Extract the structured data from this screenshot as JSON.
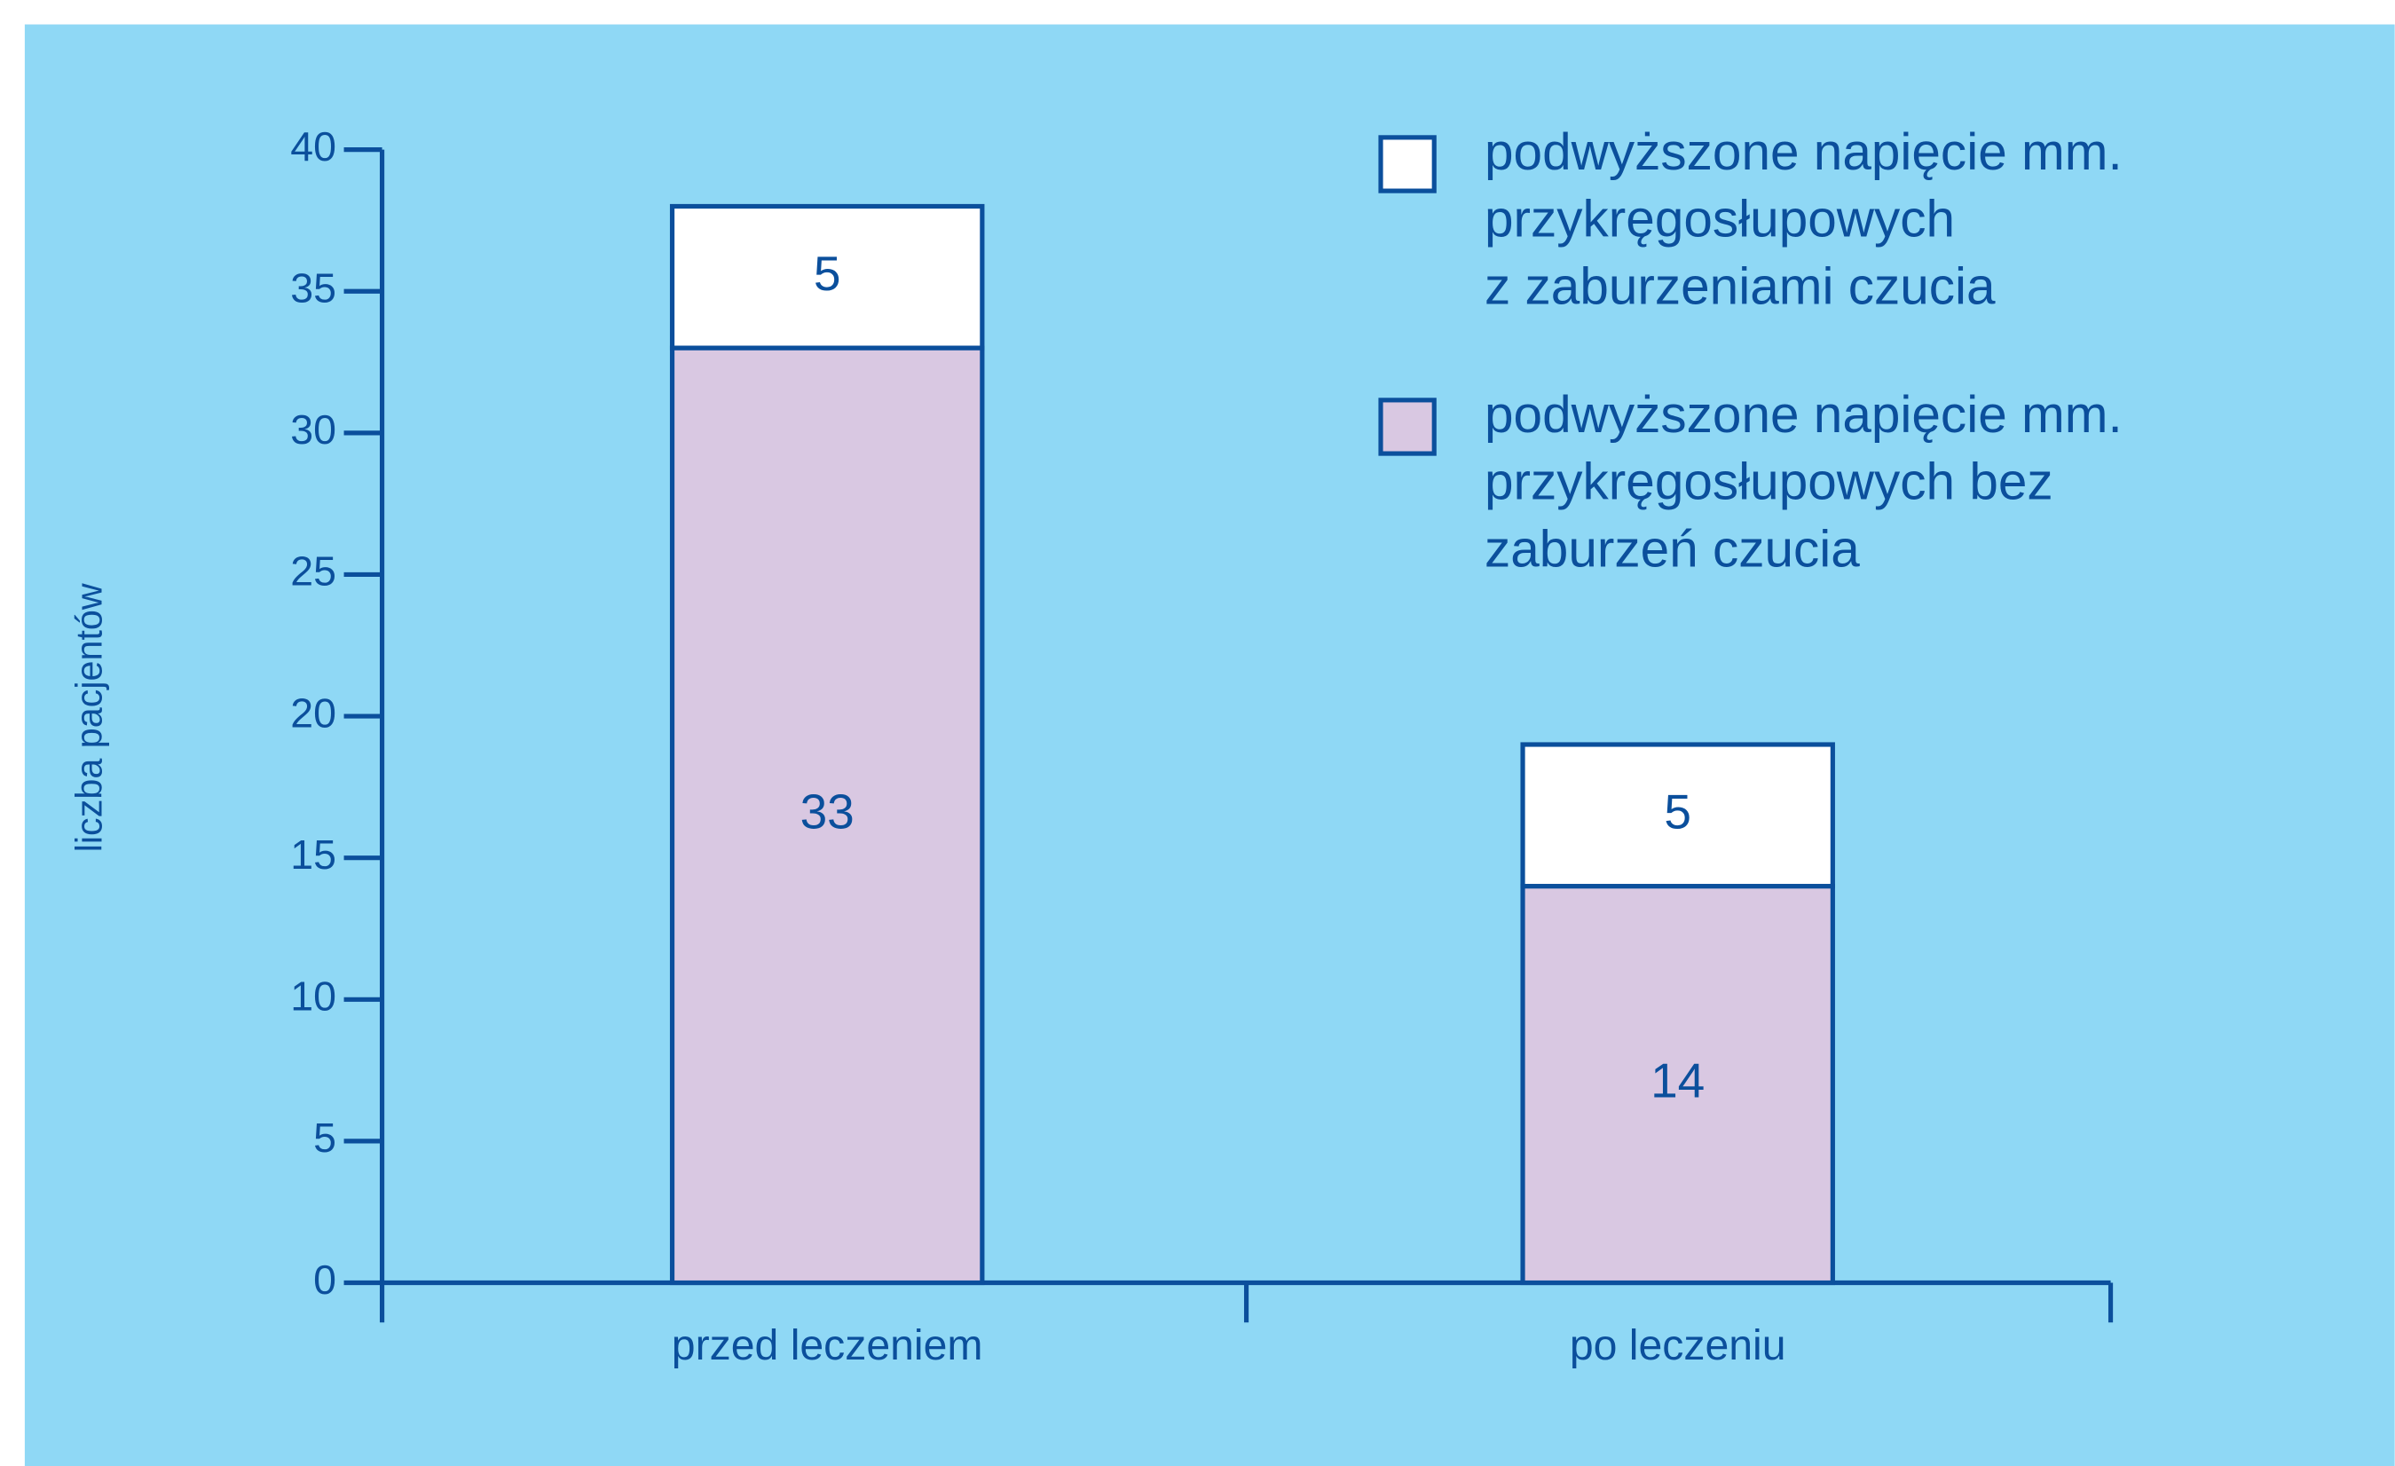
{
  "chart_data": {
    "type": "stacked_bar",
    "y_label": "liczba pacjentów",
    "categories": [
      "przed leczeniem",
      "po leczeniu"
    ],
    "series": [
      {
        "name": "podwyższone napięcie mm.\nprzykręgosłupowych\nz zaburzeniami czucia",
        "color": "#ffffff",
        "values": [
          5,
          5
        ]
      },
      {
        "name": "podwyższone napięcie mm.\nprzykręgosłupowych bez\nzaburzeń czucia",
        "color": "#d9c8e2",
        "values": [
          33,
          14
        ]
      }
    ],
    "ylim": [
      0,
      40
    ],
    "yticks": [
      0,
      5,
      10,
      15,
      20,
      25,
      30,
      35,
      40
    ],
    "legend": "top-right"
  }
}
